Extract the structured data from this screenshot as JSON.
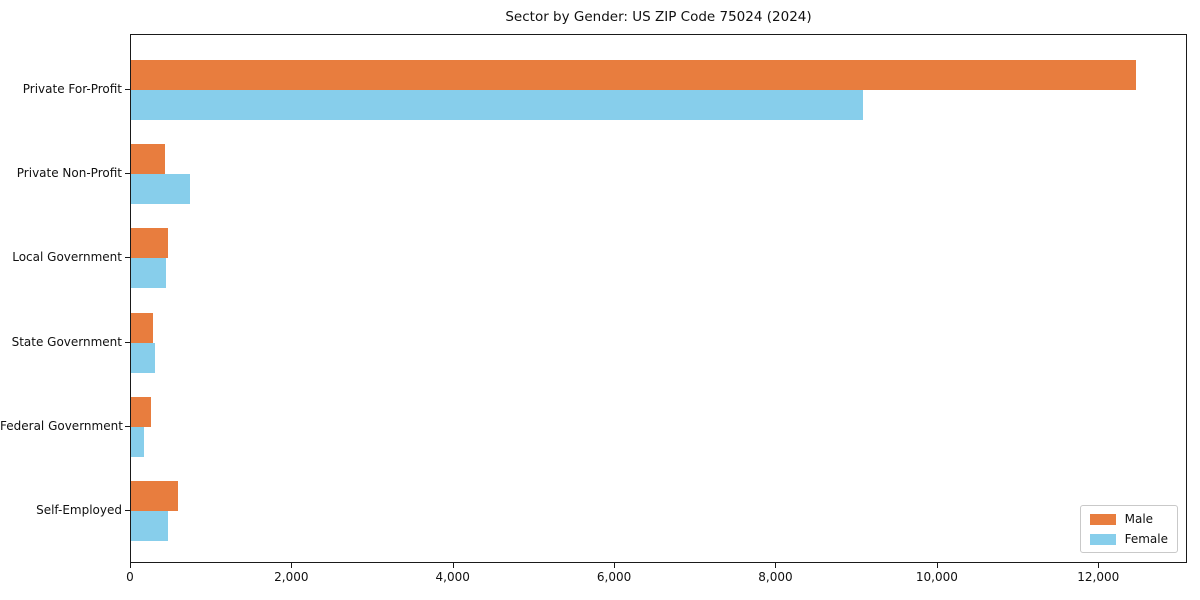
{
  "figure": {
    "background": "#ffffff",
    "plot_border_color": "#1a1a1a"
  },
  "chart_data": {
    "type": "bar",
    "orientation": "horizontal",
    "title": "Sector by Gender: US ZIP Code 75024 (2024)",
    "categories": [
      "Private For-Profit",
      "Private Non-Profit",
      "Local Government",
      "State Government",
      "Federal Government",
      "Self-Employed"
    ],
    "series": [
      {
        "name": "Male",
        "color": "#e87d3e",
        "values": [
          12450,
          425,
          460,
          270,
          250,
          585
        ]
      },
      {
        "name": "Female",
        "color": "#87ceeb",
        "values": [
          9070,
          730,
          435,
          295,
          155,
          455
        ]
      }
    ],
    "xlabel": "",
    "ylabel": "",
    "xlim": [
      0,
      13100
    ],
    "xticks": {
      "values": [
        0,
        2000,
        4000,
        6000,
        8000,
        10000,
        12000
      ],
      "labels": [
        "0",
        "2,000",
        "4,000",
        "6,000",
        "8,000",
        "10,000",
        "12,000"
      ]
    },
    "grid": false,
    "legend": {
      "position": "lower right",
      "entries": [
        "Male",
        "Female"
      ]
    }
  }
}
